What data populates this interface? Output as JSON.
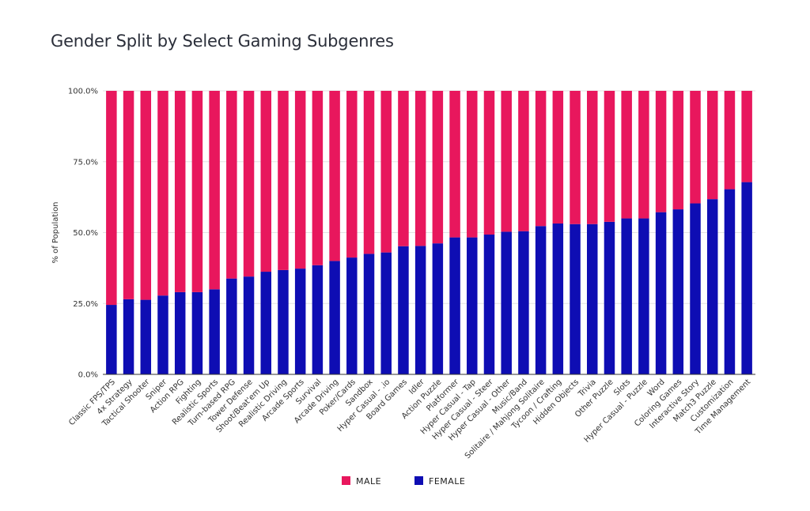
{
  "chart_data": {
    "type": "bar",
    "stacked": true,
    "title": "Gender Split by Select Gaming Subgenres",
    "ylabel": "% of Population",
    "ylim": [
      0,
      100
    ],
    "yticks": [
      "0.0%",
      "25.0%",
      "50.0%",
      "75.0%",
      "100.0%"
    ],
    "legend_position": "bottom",
    "grid": "horizontal",
    "categories": [
      "Classic FPS/TPS",
      "4x Strategy",
      "Tactical Shooter",
      "Sniper",
      "Action RPG",
      "Fighting",
      "Realistic Sports",
      "Turn-based RPG",
      "Tower Defense",
      "Shoot/Beat'em Up",
      "Realistic Driving",
      "Arcade Sports",
      "Survival",
      "Arcade Driving",
      "Poker/Cards",
      "Sandbox",
      "Hyper Casual - .io",
      "Board Games",
      "Idler",
      "Action Puzzle",
      "Platformer",
      "Hyper Casual - Tap",
      "Hyper Casual - Steer",
      "Hyper Casual - Other",
      "Music/Band",
      "Solitaire / Mahjong Solitaire",
      "Tycoon / Crafting",
      "Hidden Objects",
      "Trivia",
      "Other Puzzle",
      "Slots",
      "Hyper Casual - Puzzle",
      "Word",
      "Coloring Games",
      "Interactive Story",
      "Match3 Puzzle",
      "Customization",
      "Time Management"
    ],
    "series": [
      {
        "name": "FEMALE",
        "color": "#0e0db3",
        "values": [
          24.5,
          26.5,
          26.3,
          27.8,
          29.0,
          29.0,
          30.0,
          33.8,
          34.5,
          36.2,
          36.8,
          37.3,
          38.5,
          40.0,
          41.2,
          42.5,
          43.0,
          45.2,
          45.3,
          46.2,
          48.3,
          48.3,
          49.3,
          50.3,
          50.5,
          52.3,
          53.2,
          53.0,
          53.0,
          53.8,
          55.0,
          55.0,
          57.2,
          58.2,
          60.3,
          61.8,
          65.3,
          67.8
        ]
      },
      {
        "name": "MALE",
        "color": "#e8175d",
        "values": [
          75.5,
          73.5,
          73.7,
          72.2,
          71.0,
          71.0,
          70.0,
          66.2,
          65.5,
          63.8,
          63.2,
          62.7,
          61.5,
          60.0,
          58.8,
          57.5,
          57.0,
          54.8,
          54.7,
          53.8,
          51.7,
          51.7,
          50.7,
          49.7,
          49.5,
          47.7,
          46.8,
          47.0,
          47.0,
          46.2,
          45.0,
          45.0,
          42.8,
          41.8,
          39.7,
          38.2,
          34.7,
          32.2
        ]
      }
    ],
    "legend": [
      {
        "name": "MALE",
        "color": "#e8175d"
      },
      {
        "name": "FEMALE",
        "color": "#0e0db3"
      }
    ]
  }
}
